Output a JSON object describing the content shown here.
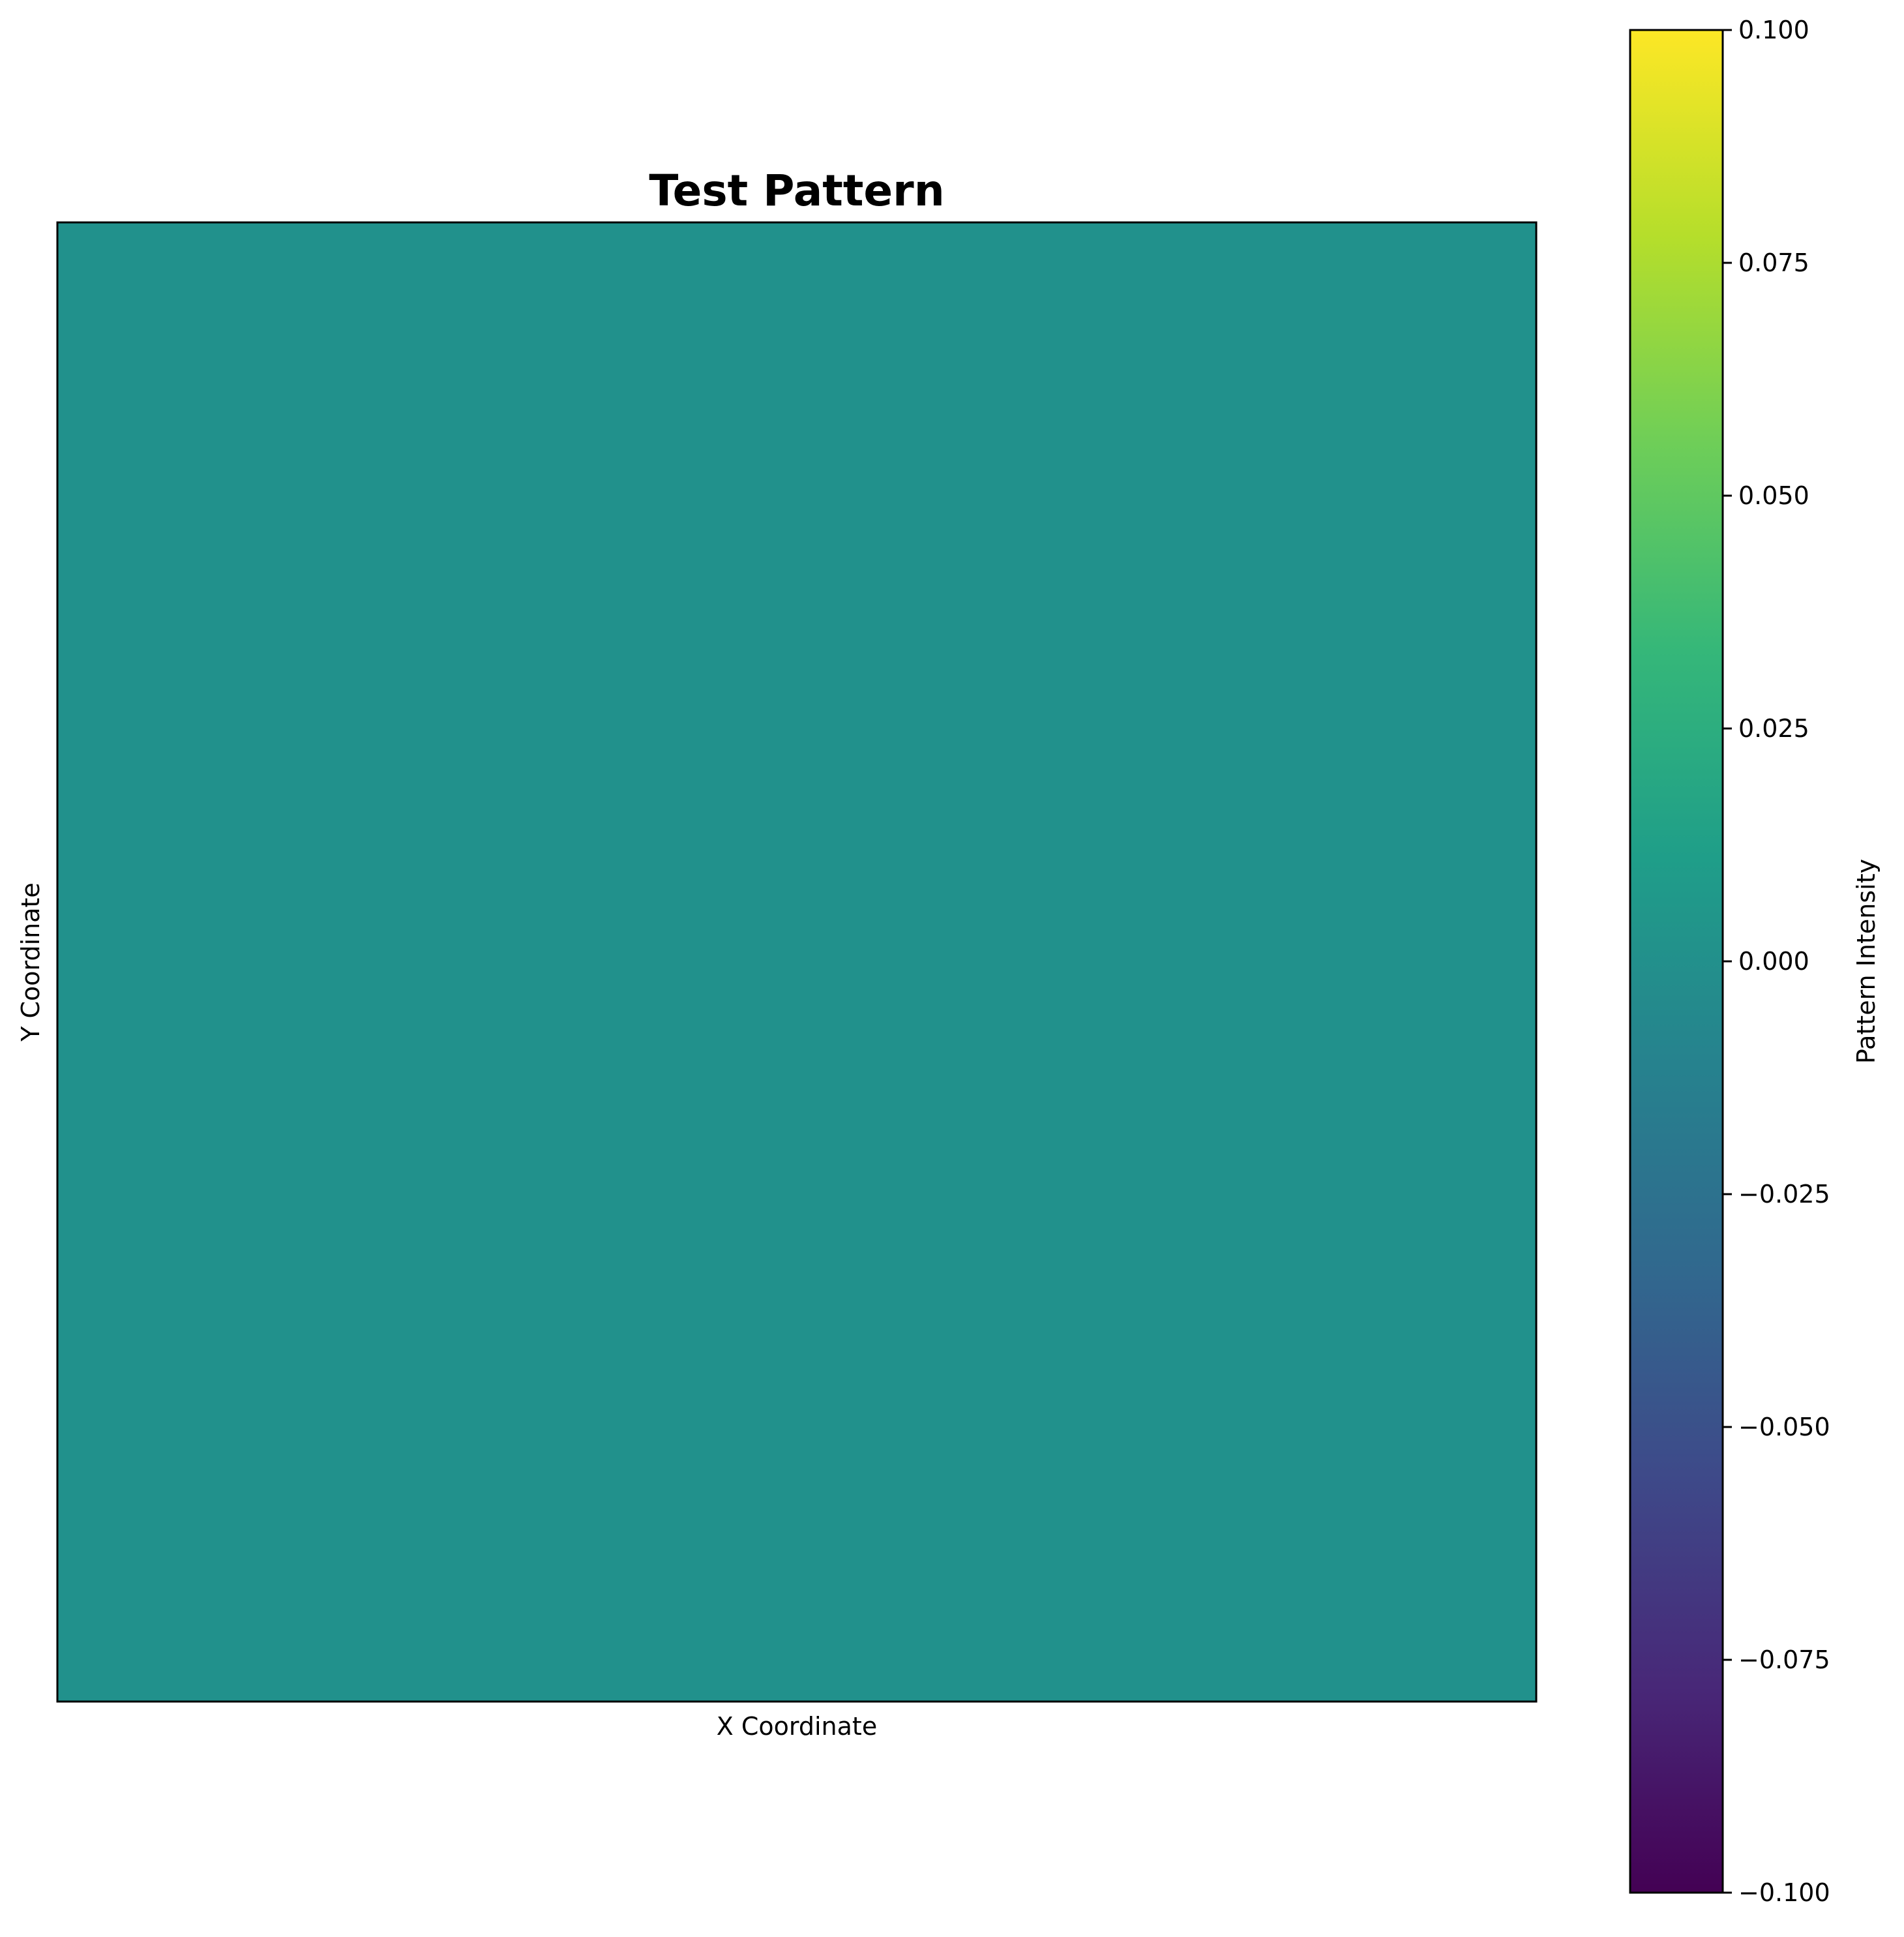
{
  "chart_data": {
    "type": "heatmap",
    "title": "Test Pattern",
    "xlabel": "X Coordinate",
    "ylabel": "Y Coordinate",
    "values": [
      [
        0.0
      ]
    ],
    "colormap": "viridis",
    "colorbar": {
      "label": "Pattern Intensity",
      "range": [
        -0.1,
        0.1
      ],
      "ticks": [
        -0.1,
        -0.075,
        -0.05,
        -0.025,
        0.0,
        0.025,
        0.05,
        0.075,
        0.1
      ],
      "tick_labels": [
        "−0.100",
        "−0.075",
        "−0.050",
        "−0.025",
        "0.000",
        "0.025",
        "0.050",
        "0.075",
        "0.100"
      ]
    },
    "x_ticks_shown": false,
    "y_ticks_shown": false,
    "grid": false,
    "colors": {
      "cell": "#21918c",
      "viridis_stops": [
        "#440154",
        "#482878",
        "#3e4989",
        "#31688e",
        "#26828e",
        "#1f9e89",
        "#35b779",
        "#6ece58",
        "#b5de2b",
        "#fde725"
      ]
    }
  }
}
